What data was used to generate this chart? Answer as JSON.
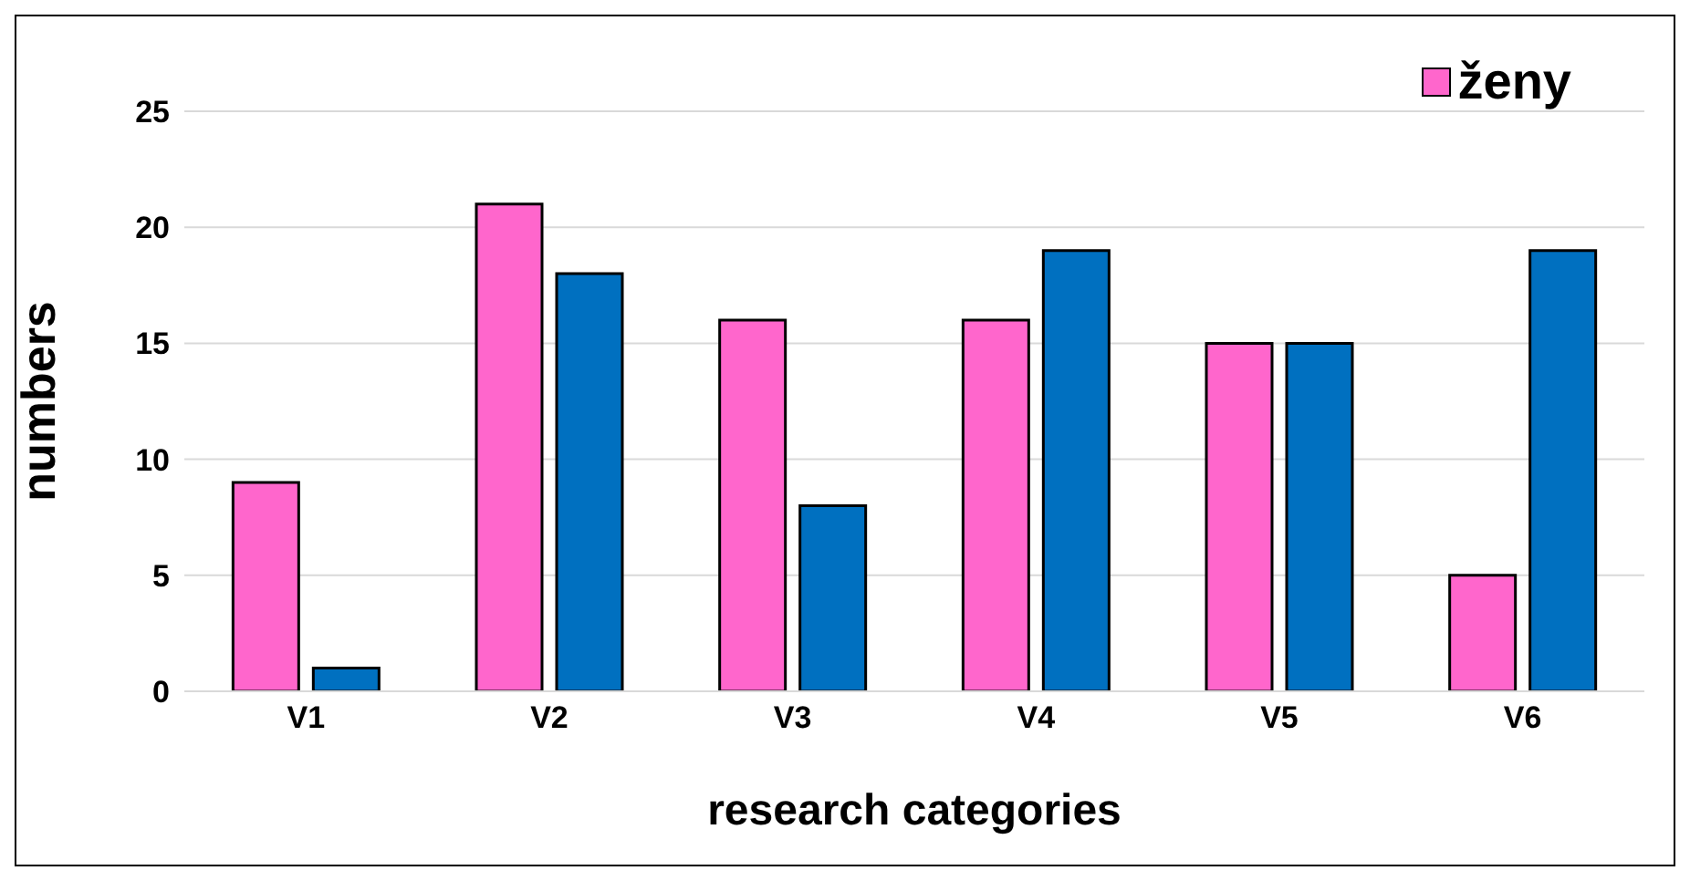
{
  "chart_data": {
    "type": "bar",
    "xlabel": "research categories",
    "ylabel": "numbers",
    "categories": [
      "V1",
      "V2",
      "V3",
      "V4",
      "V5",
      "V6"
    ],
    "series": [
      {
        "name": "ženy",
        "color": "#ff66cc",
        "values": [
          9,
          21,
          16,
          16,
          15,
          5
        ]
      },
      {
        "color": "#0070c0",
        "values": [
          1,
          18,
          8,
          19,
          15,
          19
        ]
      }
    ],
    "ylim": [
      0,
      25
    ],
    "yticks": [
      0,
      5,
      10,
      15,
      20,
      25
    ],
    "grid": "y",
    "legend": "top right"
  }
}
